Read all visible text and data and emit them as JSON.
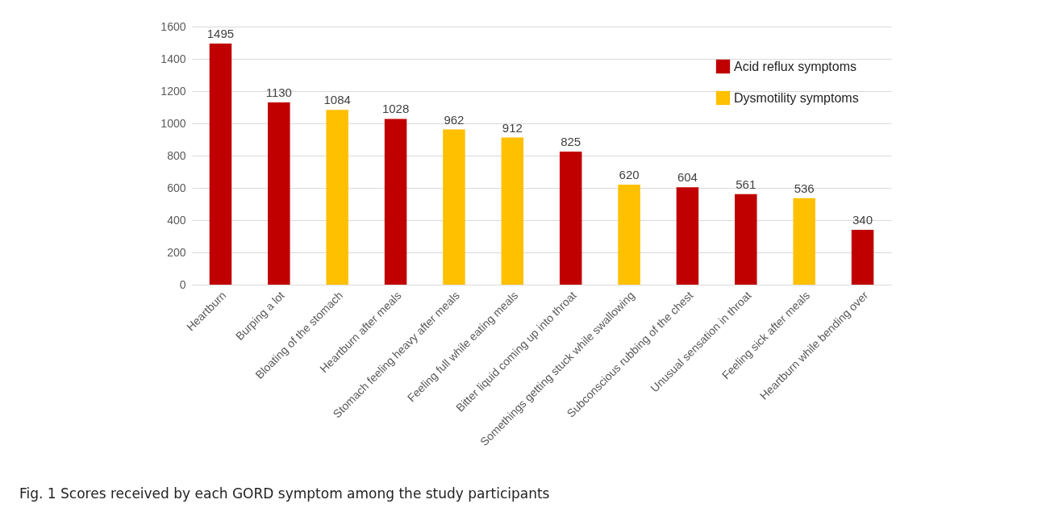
{
  "chart_data": {
    "type": "bar",
    "categories": [
      "Heartburn",
      "Burping a lot",
      "Bloating of the stomach",
      "Heartburn after meals",
      "Stomach feeling heavy after meals",
      "Feeling full while eating meals",
      "Bitter liquid coming up into throat",
      "Somethings getting stuck while swallowing",
      "Subconscious rubbing of the chest",
      "Unusual sensation in throat",
      "Feeling sick after meals",
      "Heartburn while bending over"
    ],
    "series": [
      {
        "name": "Acid reflux symptoms",
        "color": "#c00000",
        "values": [
          1495,
          1130,
          null,
          1028,
          null,
          null,
          825,
          null,
          604,
          561,
          null,
          340
        ]
      },
      {
        "name": "Dysmotility symptoms",
        "color": "#ffc000",
        "values": [
          null,
          null,
          1084,
          null,
          962,
          912,
          null,
          620,
          null,
          null,
          536,
          null
        ]
      }
    ],
    "ylim": [
      0,
      1600
    ],
    "yticks": [
      0,
      200,
      400,
      600,
      800,
      1000,
      1200,
      1400,
      1600
    ],
    "grid": "y",
    "legend": "top right",
    "data_labels": true,
    "annotations": [
      "Fig. 1 Scores received by each GORD symptom among the study participants"
    ]
  }
}
